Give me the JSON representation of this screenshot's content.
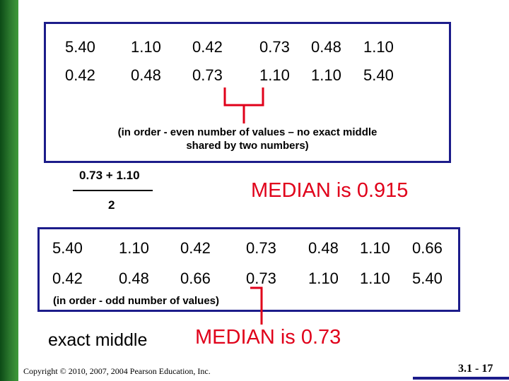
{
  "even_set": {
    "original": [
      "5.40",
      "1.10",
      "0.42",
      "0.73",
      "0.48",
      "1.10"
    ],
    "ordered": [
      "0.42",
      "0.48",
      "0.73",
      "1.10",
      "1.10",
      "5.40"
    ],
    "caption_line1": "(in order - even number of values – no exact middle",
    "caption_line2": "shared by two numbers)",
    "fraction_numerator": "0.73 + 1.10",
    "fraction_denominator": "2",
    "median_text": "MEDIAN is 0.915"
  },
  "odd_set": {
    "original": [
      "5.40",
      "1.10",
      "0.42",
      "0.73",
      "0.48",
      "1.10",
      "0.66"
    ],
    "ordered": [
      "0.42",
      "0.48",
      "0.66",
      "0.73",
      "1.10",
      "1.10",
      "5.40"
    ],
    "caption": "(in order - odd number of values)",
    "exact_middle_label": "exact middle",
    "median_text": "MEDIAN is 0.73"
  },
  "colors": {
    "box_border": "#1c1c8a",
    "bracket": "#e0001a",
    "median": "#e0001a"
  },
  "footer": {
    "copyright": "Copyright © 2010, 2007, 2004 Pearson Education, Inc.",
    "slide_number": "3.1 - 17"
  }
}
